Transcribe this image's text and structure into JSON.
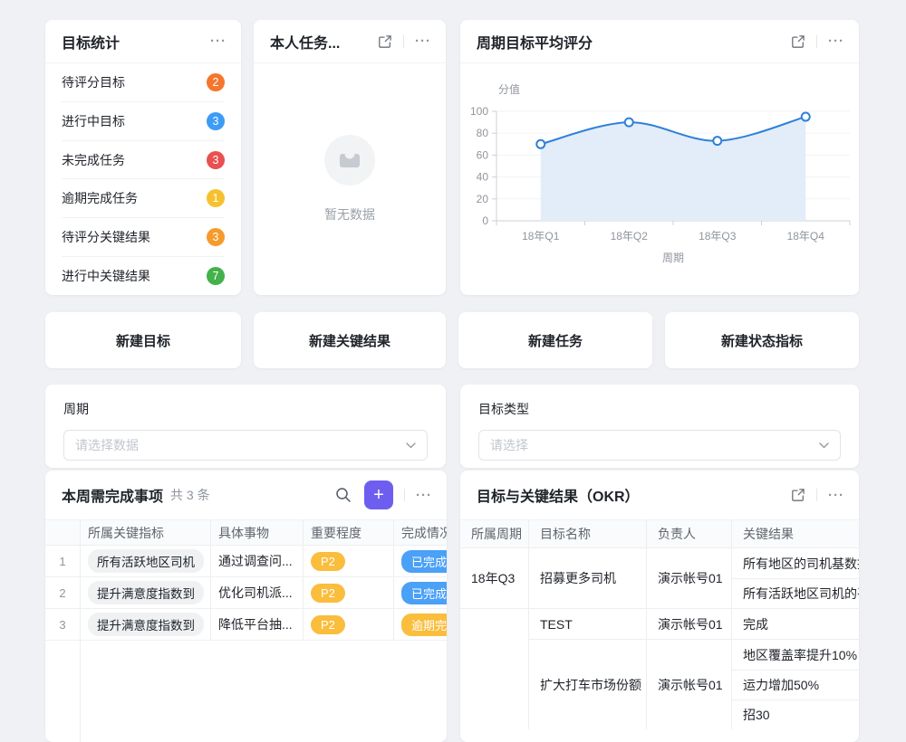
{
  "page": {
    "background": "#eff1f4"
  },
  "icons": {
    "more": "···",
    "plus": "+"
  },
  "stats_card": {
    "title": "目标统计",
    "items": [
      {
        "label": "待评分目标",
        "count": "2",
        "color": "#f5762c"
      },
      {
        "label": "进行中目标",
        "count": "3",
        "color": "#3c9cf6"
      },
      {
        "label": "未完成任务",
        "count": "3",
        "color": "#e95050"
      },
      {
        "label": "逾期完成任务",
        "count": "1",
        "color": "#f6c12f"
      },
      {
        "label": "待评分关键结果",
        "count": "3",
        "color": "#f59b2c"
      },
      {
        "label": "进行中关键结果",
        "count": "7",
        "color": "#44b14b"
      }
    ]
  },
  "tasks_card": {
    "title": "本人任务...",
    "empty_text": "暂无数据"
  },
  "chart_card": {
    "title": "周期目标平均评分"
  },
  "chart_data": {
    "type": "line",
    "title": "周期目标平均评分",
    "x": [
      "18年Q1",
      "18年Q2",
      "18年Q3",
      "18年Q4"
    ],
    "values": [
      70,
      90,
      73,
      95
    ],
    "xlabel": "周期",
    "ylabel": "分值",
    "ylim": [
      0,
      100
    ],
    "yticks": [
      0,
      20,
      40,
      60,
      80,
      100
    ],
    "grid": "horizontal",
    "legend": "none",
    "smooth": true,
    "marker": "open-circle",
    "line_color": "#2f80d9",
    "area_color": "#e3edf9"
  },
  "action_buttons": [
    {
      "label": "新建目标"
    },
    {
      "label": "新建关键结果"
    },
    {
      "label": "新建任务"
    },
    {
      "label": "新建状态指标"
    }
  ],
  "filters": [
    {
      "label": "周期",
      "placeholder": "请选择数据"
    },
    {
      "label": "目标类型",
      "placeholder": "请选择"
    }
  ],
  "todo_card": {
    "title": "本周需完成事项",
    "count_text": "共 3 条",
    "columns": {
      "index": "",
      "kr": "所属关键指标",
      "task": "具体事物",
      "priority": "重要程度",
      "status": "完成情况"
    },
    "priority_color": "#fabd3c",
    "status_colors": {
      "done": "#4ba0f7",
      "overdue": "#fabd3c"
    },
    "rows": [
      {
        "index": "1",
        "kr": "所有活跃地区司机",
        "task": "通过调查问...",
        "priority": "P2",
        "status": "已完成"
      },
      {
        "index": "2",
        "kr": "提升满意度指数到",
        "task": "优化司机派...",
        "priority": "P2",
        "status": "已完成"
      },
      {
        "index": "3",
        "kr": "提升满意度指数到",
        "task": "降低平台抽...",
        "priority": "P2",
        "status": "逾期完成"
      }
    ]
  },
  "okr_card": {
    "title": "目标与关键结果（OKR）",
    "columns": {
      "period": "所属周期",
      "objective": "目标名称",
      "owner": "负责人",
      "kr": "关键结果"
    },
    "rows": [
      {
        "period": "18年Q3",
        "objective": "招募更多司机",
        "owner": "演示帐号01",
        "krs": [
          "所有地区的司机基数提",
          "所有活跃地区司机的平"
        ]
      },
      {
        "period": "",
        "objective": "TEST",
        "owner": "演示帐号01",
        "krs": [
          "完成"
        ]
      },
      {
        "period": "",
        "objective": "扩大打车市场份额",
        "owner": "演示帐号01",
        "krs": [
          "地区覆盖率提升10%",
          "运力增加50%",
          "招30"
        ]
      }
    ]
  }
}
